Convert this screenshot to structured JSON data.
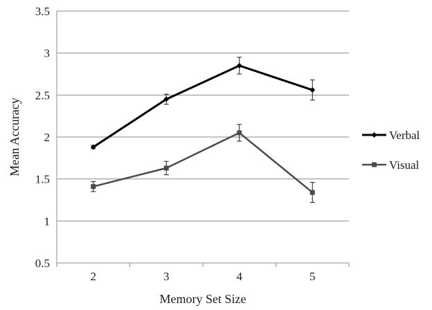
{
  "chart_data": {
    "type": "line",
    "xlabel": "Memory Set Size",
    "ylabel": "Mean Accuracy",
    "categories": [
      "2",
      "3",
      "4",
      "5"
    ],
    "ylim": [
      0.5,
      3.5
    ],
    "yticks": [
      "0.5",
      "1",
      "1.5",
      "2",
      "2.5",
      "3",
      "3.5"
    ],
    "ytick_values": [
      0.5,
      1,
      1.5,
      2,
      2.5,
      3,
      3.5
    ],
    "grid": "horizontal",
    "legend_position": "right",
    "series": [
      {
        "name": "Verbal",
        "values": [
          1.88,
          2.45,
          2.85,
          2.56
        ],
        "errors": [
          0.02,
          0.06,
          0.1,
          0.12
        ],
        "color": "#000000",
        "marker": "diamond"
      },
      {
        "name": "Visual",
        "values": [
          1.41,
          1.63,
          2.05,
          1.34
        ],
        "errors": [
          0.06,
          0.08,
          0.1,
          0.12
        ],
        "color": "#4a4a4a",
        "marker": "square"
      }
    ]
  }
}
